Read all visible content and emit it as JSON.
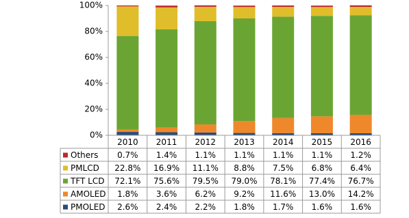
{
  "chart_data": {
    "type": "stacked_bar",
    "categories": [
      "2010",
      "2011",
      "2012",
      "2013",
      "2014",
      "2015",
      "2016"
    ],
    "series": [
      {
        "name": "Others",
        "color": "#c0272d",
        "values": [
          0.7,
          1.4,
          1.1,
          1.1,
          1.1,
          1.1,
          1.2
        ],
        "value_labels": [
          "0.7%",
          "1.4%",
          "1.1%",
          "1.1%",
          "1.1%",
          "1.1%",
          "1.2%"
        ]
      },
      {
        "name": "PMLCD",
        "color": "#e0bd2a",
        "values": [
          22.8,
          16.9,
          11.1,
          8.8,
          7.5,
          6.8,
          6.4
        ],
        "value_labels": [
          "22.8%",
          "16.9%",
          "11.1%",
          "8.8%",
          "7.5%",
          "6.8%",
          "6.4%"
        ]
      },
      {
        "name": "TFT LCD",
        "color": "#6aa533",
        "values": [
          72.1,
          75.6,
          79.5,
          79.0,
          78.1,
          77.4,
          76.7
        ],
        "value_labels": [
          "72.1%",
          "75.6%",
          "79.5%",
          "79.0%",
          "78.1%",
          "77.4%",
          "76.7%"
        ]
      },
      {
        "name": "AMOLED",
        "color": "#ef882b",
        "values": [
          1.8,
          3.6,
          6.2,
          9.2,
          11.6,
          13.0,
          14.2
        ],
        "value_labels": [
          "1.8%",
          "3.6%",
          "6.2%",
          "9.2%",
          "11.6%",
          "13.0%",
          "14.2%"
        ]
      },
      {
        "name": "PMOLED",
        "color": "#2b4c78",
        "values": [
          2.6,
          2.4,
          2.2,
          1.8,
          1.7,
          1.6,
          1.6
        ],
        "value_labels": [
          "2.6%",
          "2.4%",
          "2.2%",
          "1.8%",
          "1.7%",
          "1.6%",
          "1.6%"
        ]
      }
    ],
    "ylim": [
      0,
      100
    ],
    "yticks": [
      {
        "value": 0,
        "label": "0%"
      },
      {
        "value": 20,
        "label": "20%"
      },
      {
        "value": 40,
        "label": "40%"
      },
      {
        "value": 60,
        "label": "60%"
      },
      {
        "value": 80,
        "label": "80%"
      },
      {
        "value": 100,
        "label": "100%"
      }
    ],
    "grid": false
  }
}
